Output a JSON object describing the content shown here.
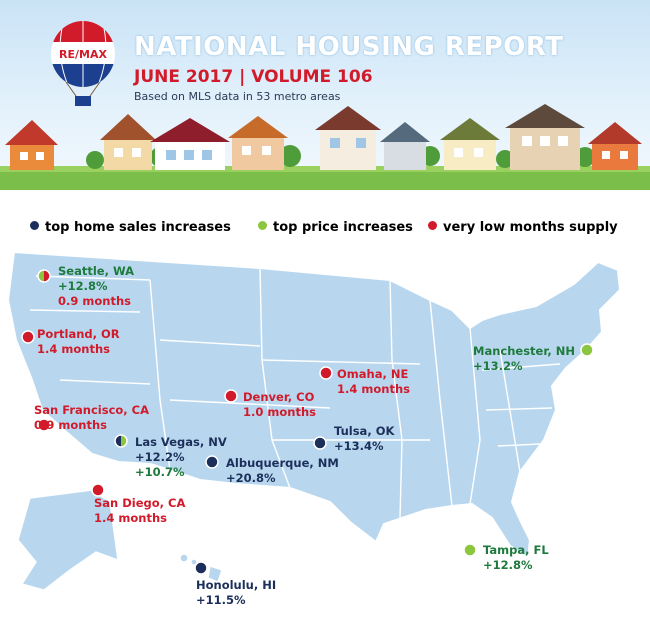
{
  "header": {
    "brand": "RE/MAX",
    "title": "NATIONAL HOUSING REPORT",
    "subtitle": "JUNE 2017  |  VOLUME 106",
    "source": "Based on MLS data in 53 metro areas"
  },
  "legend": [
    {
      "label": "top home sales increases",
      "color": "#1c2f5a"
    },
    {
      "label": "top price increases",
      "color": "#8cc63f"
    },
    {
      "label": "very low months supply",
      "color": "#d11a2a"
    }
  ],
  "colors": {
    "sales": "#1c2f5a",
    "price": "#8cc63f",
    "supply": "#d11a2a",
    "price_text": "#1e7a3c",
    "sales_text": "#1c2f5a",
    "map_fill": "#b8d7ef",
    "map_stroke": "#ffffff"
  },
  "cities": [
    {
      "name": "Seattle, WA",
      "stats": [
        "+12.8%",
        "0.9 months"
      ],
      "categories": [
        "price",
        "supply"
      ]
    },
    {
      "name": "Portland, OR",
      "stats": [
        "1.4 months"
      ],
      "categories": [
        "supply"
      ]
    },
    {
      "name": "San Francisco, CA",
      "stats": [
        "0.9 months"
      ],
      "categories": [
        "supply"
      ]
    },
    {
      "name": "Las Vegas, NV",
      "stats": [
        "+12.2%",
        "+10.7%"
      ],
      "categories": [
        "sales",
        "price"
      ]
    },
    {
      "name": "San Diego, CA",
      "stats": [
        "1.4 months"
      ],
      "categories": [
        "supply"
      ]
    },
    {
      "name": "Denver, CO",
      "stats": [
        "1.0 months"
      ],
      "categories": [
        "supply"
      ]
    },
    {
      "name": "Omaha, NE",
      "stats": [
        "1.4 months"
      ],
      "categories": [
        "supply"
      ]
    },
    {
      "name": "Tulsa, OK",
      "stats": [
        "+13.4%"
      ],
      "categories": [
        "sales"
      ]
    },
    {
      "name": "Albuquerque, NM",
      "stats": [
        "+20.8%"
      ],
      "categories": [
        "sales"
      ]
    },
    {
      "name": "Manchester, NH",
      "stats": [
        "+13.2%"
      ],
      "categories": [
        "price"
      ]
    },
    {
      "name": "Tampa, FL",
      "stats": [
        "+12.8%"
      ],
      "categories": [
        "price"
      ]
    },
    {
      "name": "Honolulu, HI",
      "stats": [
        "+11.5%"
      ],
      "categories": [
        "sales"
      ]
    }
  ]
}
